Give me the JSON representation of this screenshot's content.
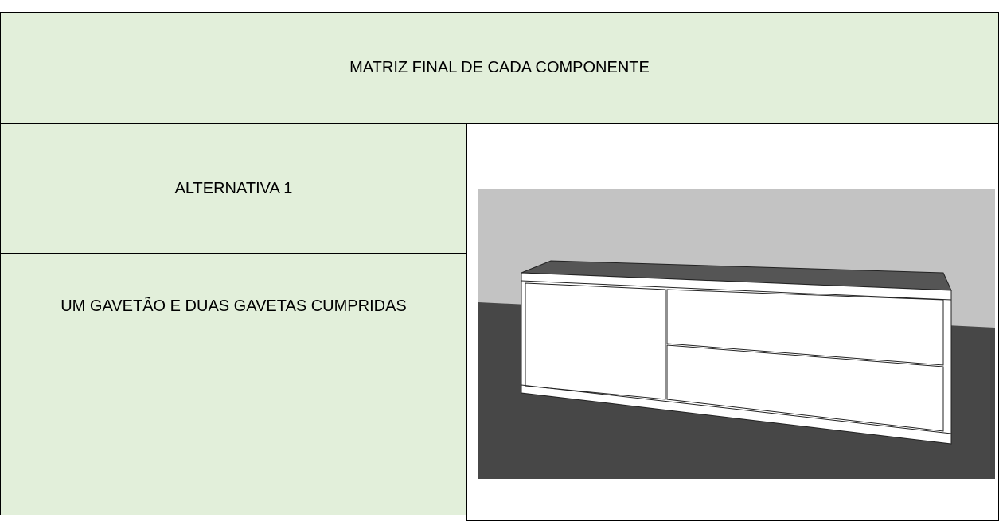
{
  "table": {
    "title": "MATRIZ FINAL DE CADA COMPONENTE",
    "rows": [
      [
        "ALTERNATIVA 1"
      ],
      [
        "UM GAVETÃO E DUAS GAVETAS CUMPRIDAS"
      ]
    ]
  }
}
